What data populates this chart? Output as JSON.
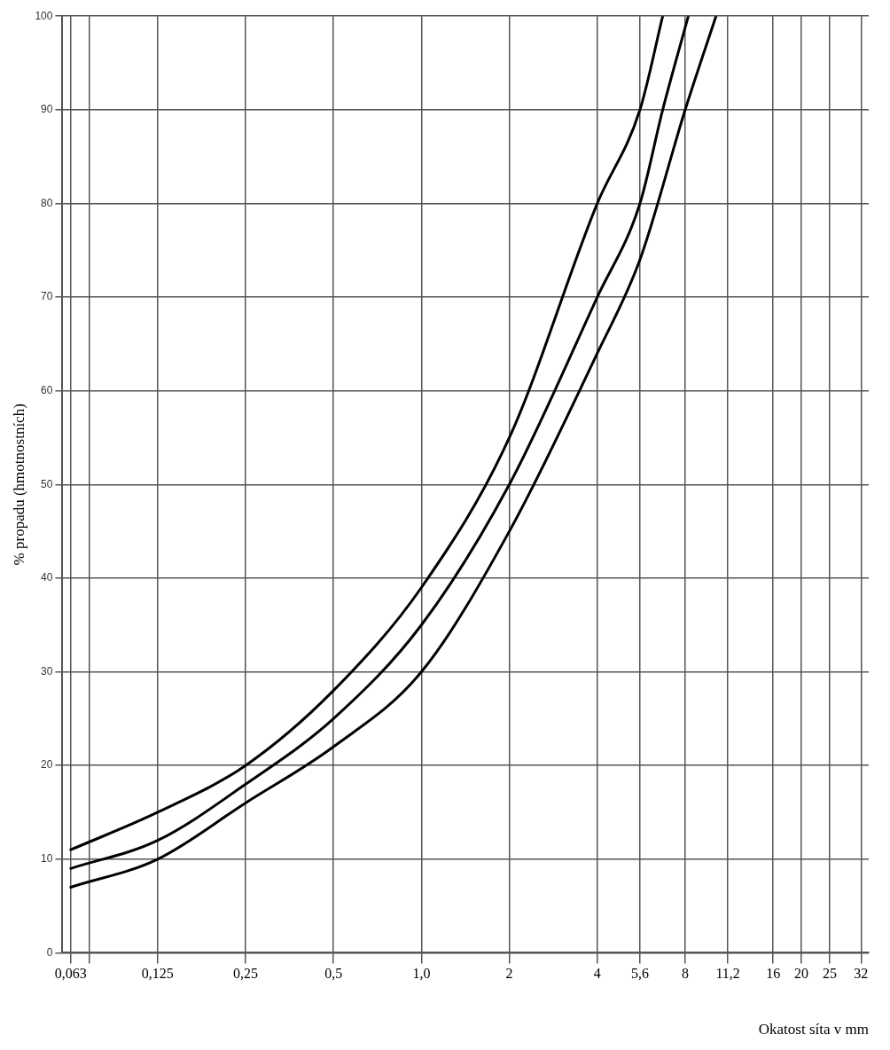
{
  "chart_data": {
    "type": "line",
    "xlabel": "Okatost síta v mm",
    "ylabel": "% propadu (hmotnostních)",
    "log": "x",
    "grid": true,
    "marker": "none",
    "line_style": "solid",
    "xlim": [
      0.059,
      34
    ],
    "ylim": [
      0,
      100
    ],
    "xticks": [
      {
        "value": 0.063,
        "label": "0,063"
      },
      {
        "value": 0.073,
        "label": null
      },
      {
        "value": 0.125,
        "label": "0,125"
      },
      {
        "value": 0.25,
        "label": "0,25"
      },
      {
        "value": 0.5,
        "label": "0,5"
      },
      {
        "value": 1,
        "label": "1,0"
      },
      2,
      4,
      {
        "value": 5.6,
        "label": "5,6"
      },
      8,
      {
        "value": 11.2,
        "label": "11,2"
      },
      16,
      20,
      25,
      32
    ],
    "yticks": [
      0,
      10,
      20,
      30,
      40,
      50,
      60,
      70,
      80,
      90,
      100
    ],
    "series": [
      {
        "color": "#000000",
        "x": [
          0.063,
          0.125,
          0.25,
          0.5,
          1,
          2,
          4,
          5.6,
          6.7
        ],
        "values": [
          11,
          15,
          20,
          28,
          39,
          55,
          80,
          90,
          100
        ]
      },
      {
        "color": "#000000",
        "x": [
          0.063,
          0.125,
          0.25,
          0.5,
          1,
          2,
          4,
          5.6,
          6.7,
          8.2
        ],
        "values": [
          9,
          12,
          18,
          25,
          35,
          50,
          70,
          80,
          90,
          100
        ]
      },
      {
        "color": "#000000",
        "x": [
          0.063,
          0.125,
          0.25,
          0.5,
          1,
          2,
          4,
          5.6,
          8,
          10.2
        ],
        "values": [
          7,
          10,
          16,
          22,
          30,
          45,
          64,
          74,
          90,
          100
        ]
      }
    ]
  }
}
